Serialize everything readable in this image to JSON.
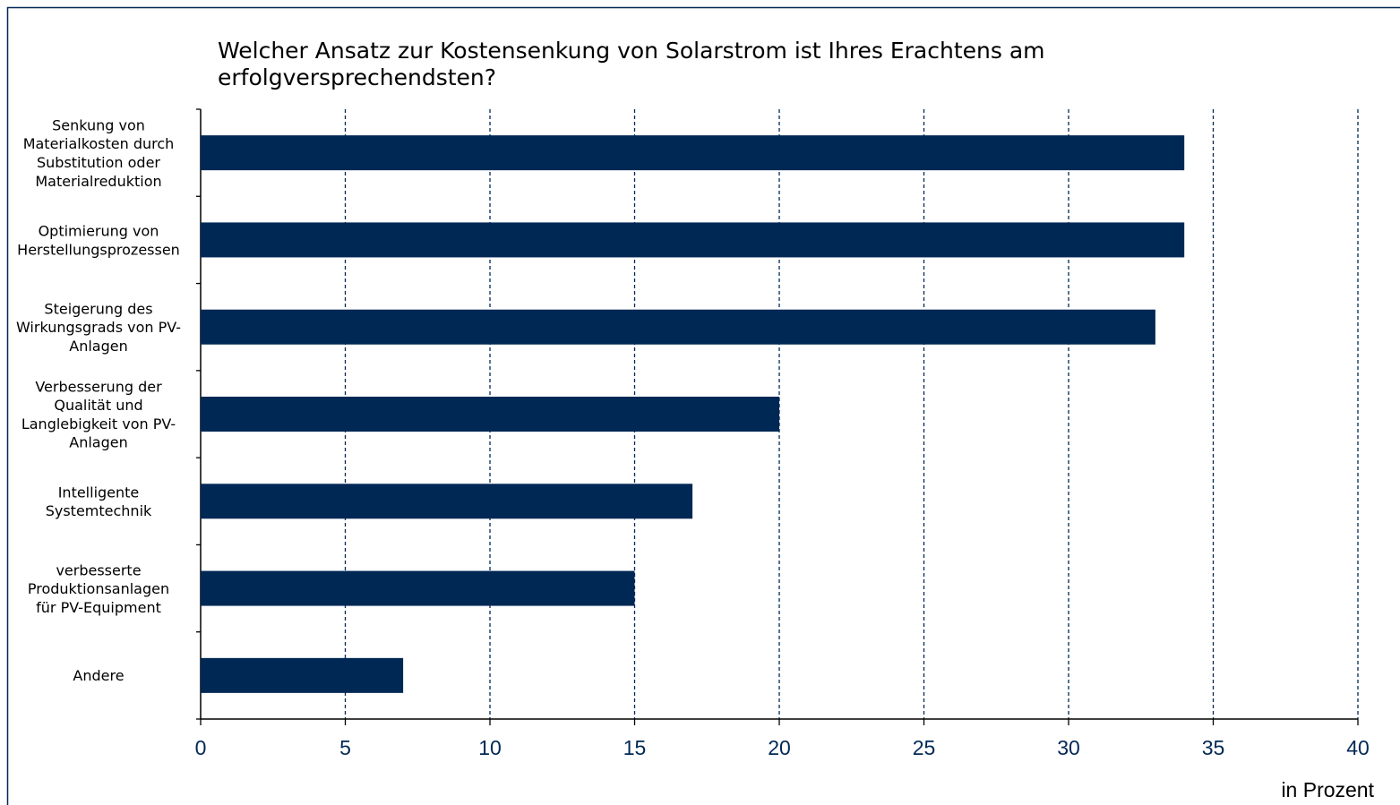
{
  "chart_data": {
    "type": "bar",
    "orientation": "horizontal",
    "title": "Welcher Ansatz zur Kostensenkung von Solarstrom ist Ihres Erachtens am\nerfolgversprechendsten?",
    "categories": [
      "Senkung von\nMaterialkosten durch\nSubstitution oder\nMaterialreduktion",
      "Optimierung von\nHerstellungsprozessen",
      "Steigerung des\nWirkungsgrads von PV-\nAnlagen",
      "Verbesserung der\nQualität und\nLanglebigkeit von PV-\nAnlagen",
      "Intelligente\nSystemtechnik",
      "verbesserte\nProduktionsanlagen\nfür PV-Equipment",
      "Andere"
    ],
    "values": [
      34,
      34,
      33,
      20,
      17,
      15,
      7
    ],
    "color": "#002855",
    "xlabel": "in Prozent",
    "xlim": [
      0,
      40
    ],
    "xticks": [
      0,
      5,
      10,
      15,
      20,
      25,
      30,
      35,
      40
    ],
    "grid": true
  }
}
